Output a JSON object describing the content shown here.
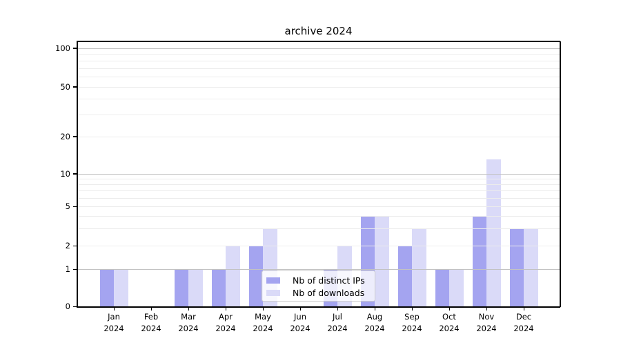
{
  "chart_data": {
    "type": "bar",
    "title": "archive 2024",
    "categories": [
      "Jan",
      "Feb",
      "Mar",
      "Apr",
      "May",
      "Jun",
      "Jul",
      "Aug",
      "Sep",
      "Oct",
      "Nov",
      "Dec"
    ],
    "x_tick_year": "2024",
    "series": [
      {
        "name": "Nb of distinct IPs",
        "color": "#a4a4f0",
        "values": [
          1,
          0,
          1,
          1,
          2,
          0,
          1,
          4,
          2,
          1,
          4,
          3
        ]
      },
      {
        "name": "Nb of downloads",
        "color": "#dadaf8",
        "values": [
          1,
          0,
          1,
          2,
          3,
          0,
          2,
          4,
          3,
          1,
          13,
          3
        ]
      }
    ],
    "y_axis": {
      "scale": "symlog",
      "tick_labels": [
        "0",
        "1",
        "2",
        "5",
        "10",
        "20",
        "50",
        "100"
      ],
      "tick_values": [
        0,
        1,
        2,
        5,
        10,
        20,
        50,
        100
      ],
      "major_gridlines": [
        1,
        10,
        100
      ],
      "minor_gridlines": [
        2,
        3,
        4,
        5,
        6,
        7,
        8,
        9,
        20,
        30,
        40,
        50,
        60,
        70,
        80,
        90
      ],
      "ylim": [
        0,
        113
      ]
    },
    "legend": {
      "position": "lower center",
      "entries": [
        "Nb of distinct IPs",
        "Nb of downloads"
      ]
    },
    "colors": {
      "bar_distinct_ips": "#a4a4f0",
      "bar_downloads": "#dadaf8",
      "major_grid": "#c2c2c2",
      "minor_grid": "#ececec",
      "axis": "#000000",
      "text": "#000000"
    },
    "grid": "both"
  }
}
